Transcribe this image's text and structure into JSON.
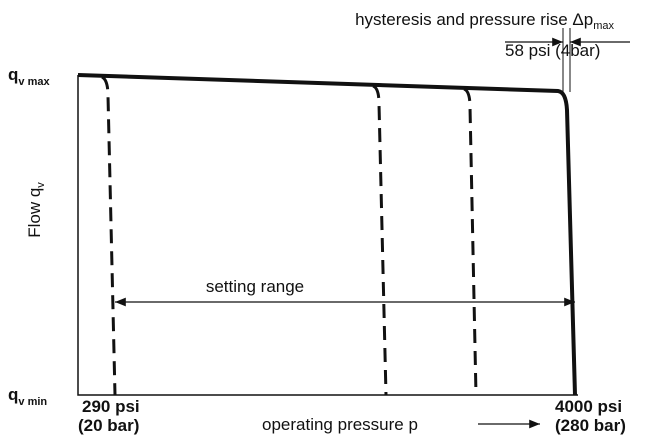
{
  "annotation": {
    "text": "hysteresis and pressure rise Δp",
    "sub": "max",
    "value": "58 psi (4bar)"
  },
  "y_axis": {
    "label": "Flow q",
    "label_sub": "v",
    "max": {
      "symbol": "q",
      "sub": "v max"
    },
    "min": {
      "symbol": "q",
      "sub": "v min"
    }
  },
  "range_label": "setting range",
  "x_axis": {
    "left": {
      "psi": "290 psi",
      "bar": "(20 bar)"
    },
    "right": {
      "psi": "4000 psi",
      "bar": "(280 bar)"
    },
    "label": "operating pressure p"
  }
}
